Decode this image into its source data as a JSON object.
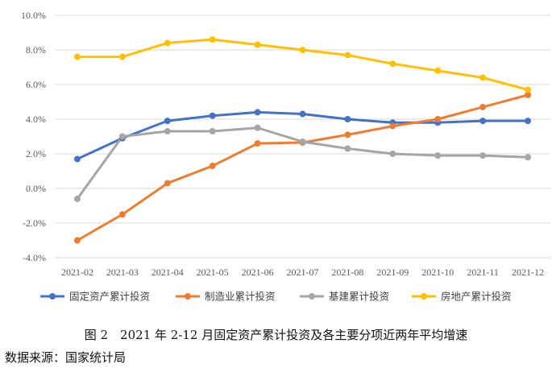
{
  "chart_data": {
    "type": "line",
    "categories": [
      "2021-02",
      "2021-03",
      "2021-04",
      "2021-05",
      "2021-06",
      "2021-07",
      "2021-08",
      "2021-09",
      "2021-10",
      "2021-11",
      "2021-12"
    ],
    "series": [
      {
        "name": "固定资产累计投资",
        "color": "#4472C4",
        "values": [
          1.7,
          2.9,
          3.9,
          4.2,
          4.4,
          4.3,
          4.0,
          3.8,
          3.8,
          3.9,
          3.9
        ]
      },
      {
        "name": "制造业累计投资",
        "color": "#ED7D31",
        "values": [
          -3.0,
          -1.5,
          0.3,
          1.3,
          2.6,
          2.65,
          3.1,
          3.6,
          4.0,
          4.7,
          5.4
        ]
      },
      {
        "name": "基建累计投资",
        "color": "#A5A5A5",
        "values": [
          -0.6,
          3.0,
          3.3,
          3.3,
          3.5,
          2.7,
          2.3,
          2.0,
          1.9,
          1.9,
          1.8
        ]
      },
      {
        "name": "房地产累计投资",
        "color": "#FFC000",
        "values": [
          7.6,
          7.6,
          8.4,
          8.6,
          8.3,
          8.0,
          7.7,
          7.2,
          6.8,
          6.4,
          5.7
        ]
      }
    ],
    "ylim": [
      -4.0,
      10.0
    ],
    "yticks": [
      "-4.0%",
      "-2.0%",
      "0.0%",
      "2.0%",
      "4.0%",
      "6.0%",
      "8.0%",
      "10.0%"
    ],
    "grid": true,
    "legend_position": "bottom"
  },
  "caption": "图 2　2021 年 2-12 月固定资产累计投资及各主要分项近两年平均增速",
  "source": "数据来源：国家统计局"
}
